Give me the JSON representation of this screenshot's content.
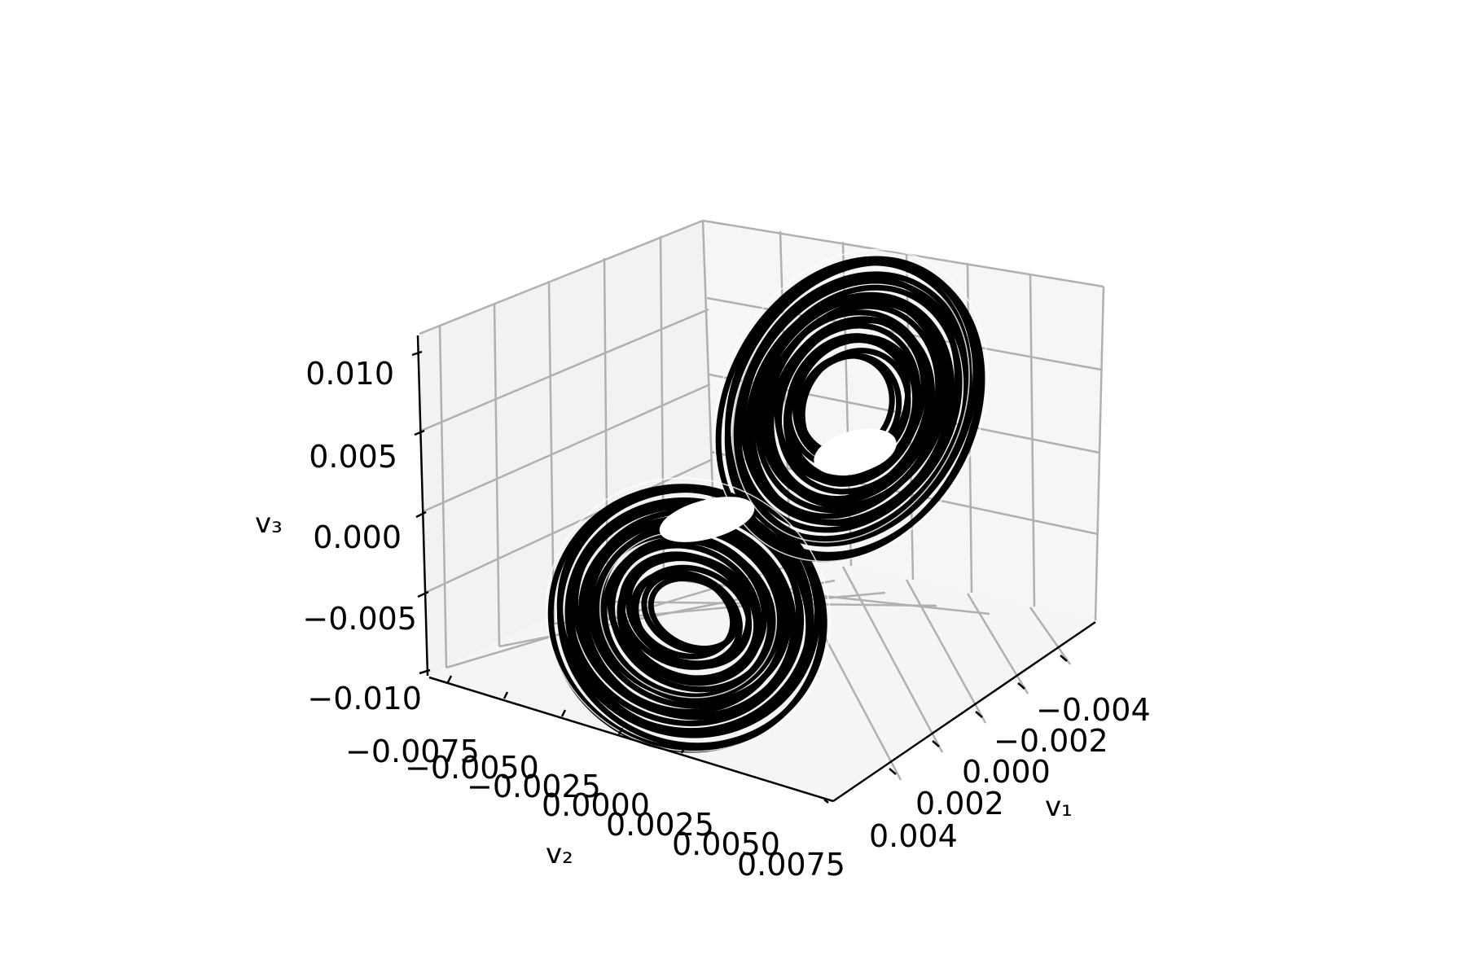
{
  "chart_data": {
    "type": "line3d",
    "title": "",
    "xlabel": "v₁",
    "ylabel": "v₂",
    "zlabel": "v₃",
    "x_ticks": [
      "−0.004",
      "−0.002",
      "0.000",
      "0.002",
      "0.004"
    ],
    "y_ticks": [
      "−0.0075",
      "−0.0050",
      "−0.0025",
      "0.0000",
      "0.0025",
      "0.0050",
      "0.0075"
    ],
    "z_ticks": [
      "0.010",
      "0.005",
      "0.000",
      "−0.005",
      "−0.010"
    ],
    "xlim": [
      -0.005,
      0.005
    ],
    "ylim": [
      -0.009,
      0.009
    ],
    "zlim": [
      -0.011,
      0.011
    ],
    "grid": true,
    "series": [
      {
        "color": "#000000",
        "description_points": {
          "lobe_1": {
            "center": [
              0.0025,
              -0.002,
              0.004
            ],
            "radii_outer": [
              0.0045,
              0.009
            ],
            "radii_inner": [
              0.0015,
              0.003
            ]
          },
          "lobe_2": {
            "center": [
              -0.001,
              0.003,
              -0.004
            ],
            "radii_outer": [
              0.0045,
              0.007
            ],
            "radii_inner": [
              0.0014,
              0.0025
            ]
          }
        }
      }
    ]
  },
  "colors": {
    "pane_left": "#f2f2f2",
    "pane_right": "#f6f6f6",
    "pane_floor": "#f5f5f5",
    "grid": "#b0b0b0",
    "axis": "#000000",
    "trajectory": "#000000"
  }
}
